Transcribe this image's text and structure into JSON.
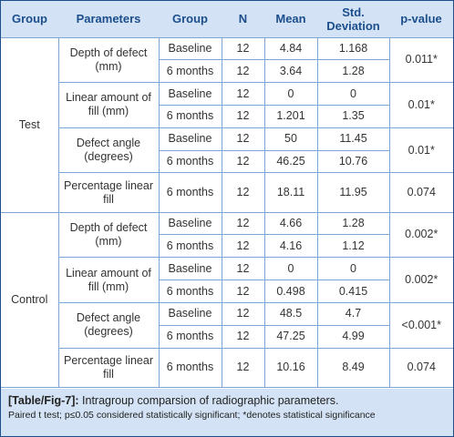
{
  "table": {
    "headers": [
      "Group",
      "Parameters",
      "Group",
      "N",
      "Mean",
      "Std. Deviation",
      "p-value"
    ],
    "groups": [
      {
        "name": "Test",
        "parameters": [
          {
            "name": "Depth of defect (mm)",
            "p_value": "0.011*",
            "rows": [
              {
                "time": "Baseline",
                "n": "12",
                "mean": "4.84",
                "sd": "1.168"
              },
              {
                "time": "6 months",
                "n": "12",
                "mean": "3.64",
                "sd": "1.28"
              }
            ]
          },
          {
            "name": "Linear amount of fill (mm)",
            "p_value": "0.01*",
            "rows": [
              {
                "time": "Baseline",
                "n": "12",
                "mean": "0",
                "sd": "0"
              },
              {
                "time": "6 months",
                "n": "12",
                "mean": "1.201",
                "sd": "1.35"
              }
            ]
          },
          {
            "name": "Defect angle (degrees)",
            "p_value": "0.01*",
            "rows": [
              {
                "time": "Baseline",
                "n": "12",
                "mean": "50",
                "sd": "11.45"
              },
              {
                "time": "6 months",
                "n": "12",
                "mean": "46.25",
                "sd": "10.76"
              }
            ]
          },
          {
            "name": "Percentage linear fill",
            "p_value": "0.074",
            "rows": [
              {
                "time": "6 months",
                "n": "12",
                "mean": "18.11",
                "sd": "11.95"
              }
            ]
          }
        ]
      },
      {
        "name": "Control",
        "parameters": [
          {
            "name": "Depth of defect (mm)",
            "p_value": "0.002*",
            "rows": [
              {
                "time": "Baseline",
                "n": "12",
                "mean": "4.66",
                "sd": "1.28"
              },
              {
                "time": "6 months",
                "n": "12",
                "mean": "4.16",
                "sd": "1.12"
              }
            ]
          },
          {
            "name": "Linear amount of fill (mm)",
            "p_value": "0.002*",
            "rows": [
              {
                "time": "Baseline",
                "n": "12",
                "mean": "0",
                "sd": "0"
              },
              {
                "time": "6 months",
                "n": "12",
                "mean": "0.498",
                "sd": "0.415"
              }
            ]
          },
          {
            "name": "Defect angle (degrees)",
            "p_value": "<0.001*",
            "rows": [
              {
                "time": "Baseline",
                "n": "12",
                "mean": "48.5",
                "sd": "4.7"
              },
              {
                "time": "6 months",
                "n": "12",
                "mean": "47.25",
                "sd": "4.99"
              }
            ]
          },
          {
            "name": "Percentage linear fill",
            "p_value": "0.074",
            "rows": [
              {
                "time": "6 months",
                "n": "12",
                "mean": "10.16",
                "sd": "8.49"
              }
            ]
          }
        ]
      }
    ]
  },
  "caption": {
    "label": "[Table/Fig-7]:",
    "title": "Intragroup comparsion of radiographic parameters.",
    "note": "Paired t test; p≤0.05 considered statistically significant; *denotes statistical significance"
  }
}
